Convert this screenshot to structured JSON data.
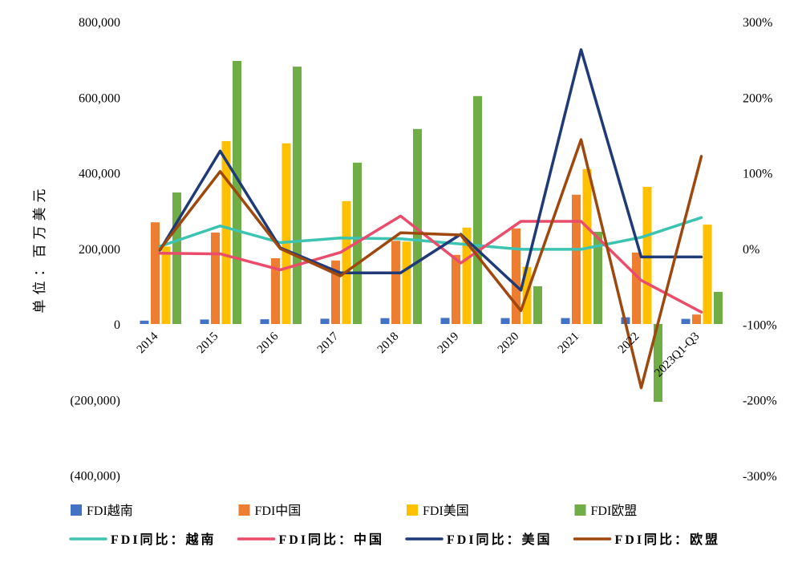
{
  "chart_data": {
    "type": "bar",
    "title": "",
    "xlabel": "",
    "ylabel": "单位：百万美元",
    "y2label": "",
    "categories": [
      "2014",
      "2015",
      "2016",
      "2017",
      "2018",
      "2019",
      "2020",
      "2021",
      "2022",
      "2023Q1-Q3"
    ],
    "ylim": [
      -400000,
      800000
    ],
    "y2lim": [
      -300,
      300
    ],
    "y_ticks": {
      "values": [
        800000,
        600000,
        400000,
        200000,
        0,
        -200000,
        -400000
      ],
      "labels": [
        "800,000",
        "600,000",
        "400,000",
        "200,000",
        "0",
        "(200,000)",
        "(400,000)"
      ]
    },
    "y2_ticks": {
      "values": [
        300,
        200,
        100,
        0,
        -100,
        -200,
        -300
      ],
      "labels": [
        "300%",
        "200%",
        "100%",
        "0%",
        "-100%",
        "-200%",
        "-300%"
      ]
    },
    "y_negative_tick_color": "#FF0000",
    "grid": false,
    "legend_position": "bottom",
    "bar_series": [
      {
        "name": "FDI越南",
        "color": "#4472C4",
        "values": [
          9000,
          11800,
          12600,
          14100,
          15500,
          16100,
          15800,
          15700,
          17900,
          13500
        ]
      },
      {
        "name": "FDI中国",
        "color": "#ED7D31",
        "values": [
          269000,
          242000,
          174000,
          168000,
          220000,
          183000,
          253000,
          342000,
          189000,
          25000
        ]
      },
      {
        "name": "FDI美国",
        "color": "#FFC000",
        "values": [
          205000,
          484000,
          478000,
          325000,
          218000,
          255000,
          151000,
          410000,
          363000,
          263000
        ]
      },
      {
        "name": "FDI欧盟",
        "color": "#70AD47",
        "values": [
          348000,
          696000,
          681000,
          427000,
          516000,
          603000,
          100000,
          244000,
          -206000,
          85000
        ]
      }
    ],
    "line_series": [
      {
        "name": "FDI同比：越南",
        "color": "#3DC3B1",
        "values": [
          3,
          30,
          8,
          14,
          13,
          6,
          -1,
          -1,
          15,
          41
        ]
      },
      {
        "name": "FDI同比：中国",
        "color": "#EA4D6B",
        "values": [
          -6,
          -7,
          -28,
          -5,
          43,
          -19,
          36,
          36,
          -42,
          -84
        ]
      },
      {
        "name": "FDI同比：美国",
        "color": "#203A78",
        "values": [
          -2,
          129,
          1,
          -32,
          -32,
          19,
          -55,
          263,
          -11,
          -11
        ]
      },
      {
        "name": "FDI同比：欧盟",
        "color": "#9E480E",
        "values": [
          -1,
          102,
          0,
          -36,
          21,
          18,
          -82,
          144,
          -184,
          122
        ]
      }
    ]
  }
}
